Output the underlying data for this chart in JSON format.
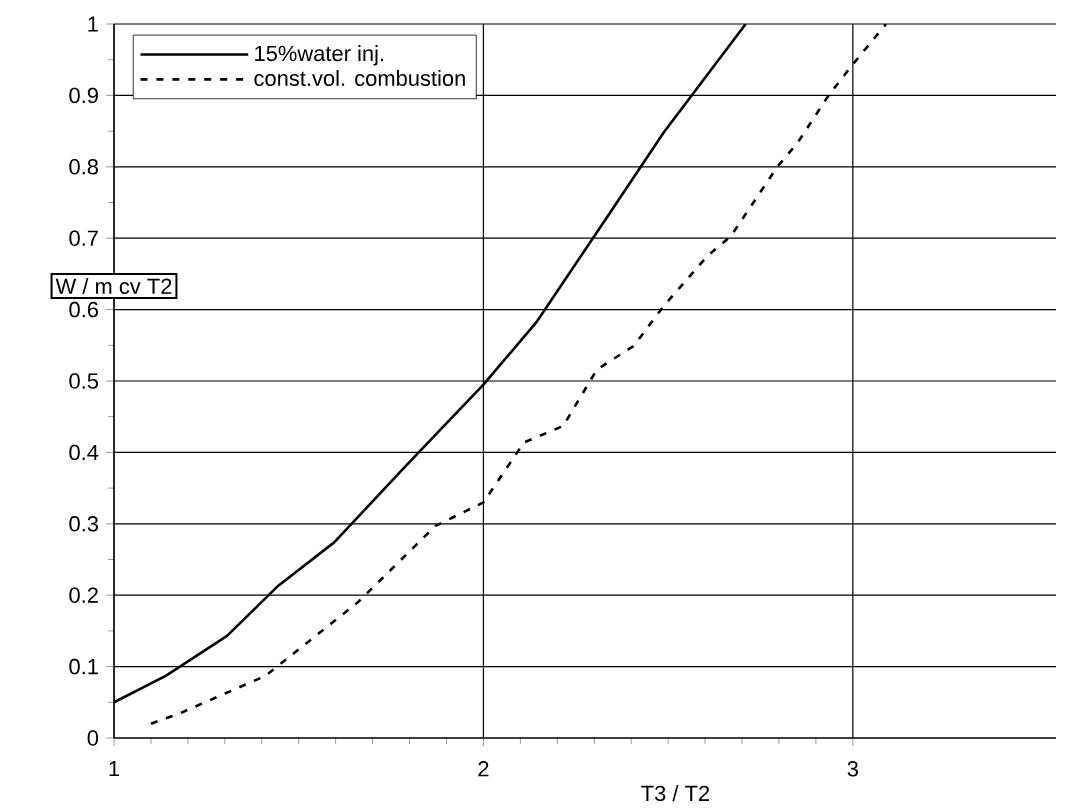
{
  "chart_data": {
    "type": "line",
    "xlabel": "T3 / T2",
    "ylabel": "W / m cv T2",
    "xlim": [
      1,
      3.55
    ],
    "xticks": [
      1,
      2,
      3
    ],
    "ylim": [
      0,
      1
    ],
    "yticks": [
      0,
      0.1,
      0.2,
      0.3,
      0.4,
      0.5,
      0.6,
      0.7,
      0.8,
      0.9,
      1
    ],
    "grid": true,
    "legend": "top left",
    "marker": "none",
    "series": [
      {
        "name": "15%water inj.",
        "color": "#000000",
        "line_style": "solid",
        "x": [
          1,
          1.14,
          1.306,
          1.444,
          1.596,
          1.79,
          2.0,
          2.143,
          2.325,
          2.488,
          2.71
        ],
        "values": [
          0.05,
          0.087,
          0.143,
          0.213,
          0.274,
          0.381,
          0.495,
          0.582,
          0.722,
          0.848,
          1.0
        ]
      },
      {
        "name": "const.vol. combustion",
        "color": "#000000",
        "line_style": "dashed",
        "x": [
          1.1,
          1.18,
          1.41,
          1.66,
          1.87,
          2.0,
          2.11,
          2.216,
          2.307,
          2.407,
          2.488,
          2.606,
          2.67,
          2.797,
          2.851,
          2.933,
          2.996,
          3.09
        ],
        "values": [
          0.02,
          0.035,
          0.087,
          0.19,
          0.297,
          0.33,
          0.414,
          0.437,
          0.516,
          0.549,
          0.605,
          0.675,
          0.703,
          0.801,
          0.834,
          0.899,
          0.941,
          1.0
        ]
      }
    ]
  }
}
